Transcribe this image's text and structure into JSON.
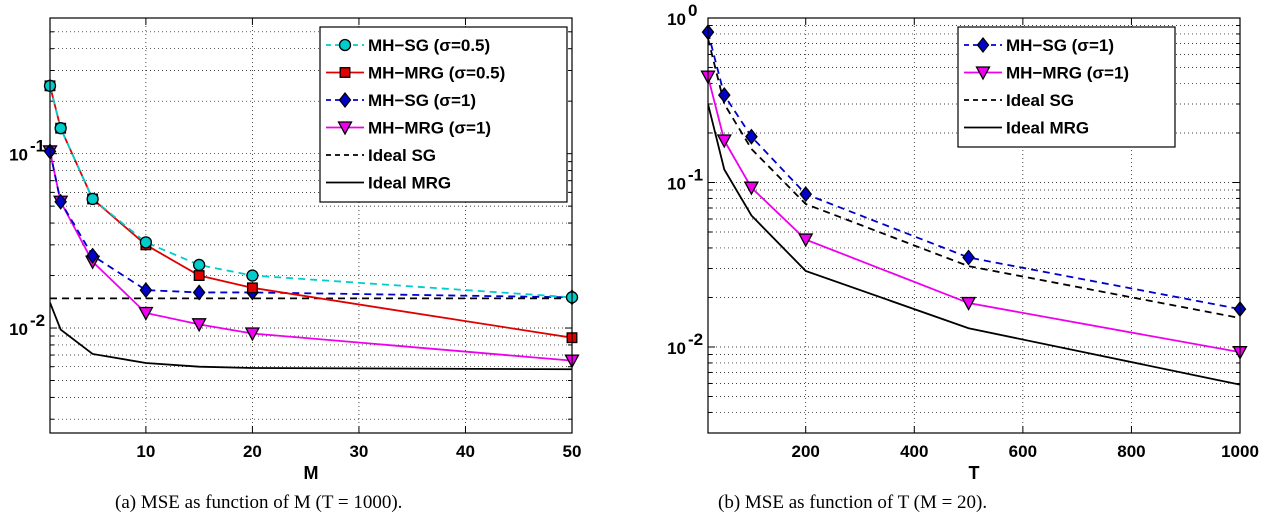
{
  "chart_data": [
    {
      "type": "line",
      "yscale": "log",
      "xlabel": "M",
      "ylabel": "",
      "xlim": [
        1,
        50
      ],
      "ylim": [
        0.0025,
        0.6
      ],
      "xticks": [
        10,
        20,
        30,
        40,
        50
      ],
      "yticks": [
        {
          "value": 0.01,
          "base": "10",
          "exp": "-2"
        },
        {
          "value": 0.1,
          "base": "10",
          "exp": "-1"
        }
      ],
      "grid": true,
      "legend": "top-right",
      "caption": "(a) MSE as function of M (T = 1000).",
      "series": [
        {
          "name": "MH−SG (σ=0.5)",
          "color": "#00cccc",
          "dash": "dashed",
          "marker": "circle",
          "x": [
            1,
            2,
            5,
            10,
            15,
            20,
            50
          ],
          "y": [
            0.245,
            0.14,
            0.055,
            0.031,
            0.023,
            0.02,
            0.015
          ]
        },
        {
          "name": "MH−MRG (σ=0.5)",
          "color": "#e00000",
          "dash": "solid",
          "marker": "square",
          "x": [
            1,
            2,
            5,
            10,
            15,
            20,
            50
          ],
          "y": [
            0.245,
            0.14,
            0.055,
            0.03,
            0.02,
            0.017,
            0.0088
          ]
        },
        {
          "name": "MH−SG (σ=1)",
          "color": "#0000cc",
          "dash": "dashed",
          "marker": "diamond",
          "x": [
            1,
            2,
            5,
            10,
            15,
            20,
            50
          ],
          "y": [
            0.103,
            0.053,
            0.026,
            0.0165,
            0.016,
            0.016,
            0.015
          ]
        },
        {
          "name": "MH−MRG (σ=1)",
          "color": "#ee00ee",
          "dash": "solid",
          "marker": "triangle",
          "x": [
            1,
            2,
            5,
            10,
            15,
            20,
            50
          ],
          "y": [
            0.103,
            0.053,
            0.024,
            0.0122,
            0.0105,
            0.0093,
            0.0065
          ]
        },
        {
          "name": "Ideal SG",
          "color": "#000000",
          "dash": "dashed",
          "marker": "none",
          "x": [
            1,
            2,
            5,
            10,
            15,
            20,
            50
          ],
          "y": [
            0.0148,
            0.0148,
            0.0148,
            0.0148,
            0.0148,
            0.0148,
            0.0148
          ]
        },
        {
          "name": "Ideal MRG",
          "color": "#000000",
          "dash": "solid",
          "marker": "none",
          "x": [
            1,
            2,
            5,
            10,
            15,
            20,
            50
          ],
          "y": [
            0.014,
            0.0098,
            0.0071,
            0.0063,
            0.006,
            0.0059,
            0.0058
          ]
        }
      ]
    },
    {
      "type": "line",
      "yscale": "log",
      "xlabel": "T",
      "ylabel": "",
      "xlim": [
        20,
        1000
      ],
      "ylim": [
        0.003,
        1.0
      ],
      "xticks": [
        200,
        400,
        600,
        800,
        1000
      ],
      "yticks": [
        {
          "value": 0.01,
          "base": "10",
          "exp": "-2"
        },
        {
          "value": 0.1,
          "base": "10",
          "exp": "-1"
        },
        {
          "value": 1,
          "base": "10",
          "exp": "0"
        }
      ],
      "grid": true,
      "legend": "top-right",
      "caption": "(b) MSE as function of T (M = 20).",
      "series": [
        {
          "name": "MH−SG (σ=1)",
          "color": "#0000cc",
          "dash": "dashed",
          "marker": "diamond",
          "x": [
            20,
            50,
            100,
            200,
            500,
            1000
          ],
          "y": [
            0.82,
            0.34,
            0.19,
            0.085,
            0.035,
            0.017
          ]
        },
        {
          "name": "MH−MRG (σ=1)",
          "color": "#ee00ee",
          "dash": "solid",
          "marker": "triangle",
          "x": [
            20,
            50,
            100,
            200,
            500,
            1000
          ],
          "y": [
            0.44,
            0.18,
            0.093,
            0.045,
            0.0185,
            0.0093
          ]
        },
        {
          "name": "Ideal SG",
          "color": "#000000",
          "dash": "dashed",
          "marker": "none",
          "x": [
            20,
            50,
            100,
            200,
            500,
            1000
          ],
          "y": [
            0.75,
            0.3,
            0.16,
            0.074,
            0.031,
            0.015
          ]
        },
        {
          "name": "Ideal MRG",
          "color": "#000000",
          "dash": "solid",
          "marker": "none",
          "x": [
            20,
            50,
            100,
            200,
            500,
            1000
          ],
          "y": [
            0.3,
            0.12,
            0.063,
            0.029,
            0.013,
            0.0059
          ]
        }
      ]
    }
  ]
}
